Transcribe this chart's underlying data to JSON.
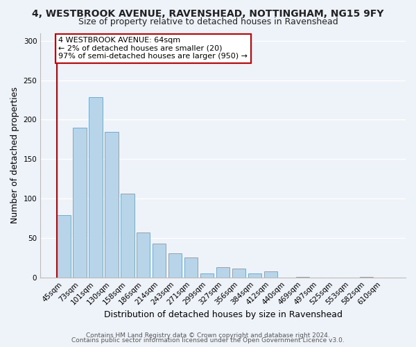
{
  "title_line1": "4, WESTBROOK AVENUE, RAVENSHEAD, NOTTINGHAM, NG15 9FY",
  "title_line2": "Size of property relative to detached houses in Ravenshead",
  "xlabel": "Distribution of detached houses by size in Ravenshead",
  "ylabel": "Number of detached properties",
  "bar_labels": [
    "45sqm",
    "73sqm",
    "101sqm",
    "130sqm",
    "158sqm",
    "186sqm",
    "214sqm",
    "243sqm",
    "271sqm",
    "299sqm",
    "327sqm",
    "356sqm",
    "384sqm",
    "412sqm",
    "440sqm",
    "469sqm",
    "497sqm",
    "525sqm",
    "553sqm",
    "582sqm",
    "610sqm"
  ],
  "bar_values": [
    79,
    190,
    229,
    185,
    106,
    57,
    43,
    31,
    25,
    5,
    13,
    11,
    5,
    8,
    0,
    1,
    0,
    0,
    0,
    1,
    0
  ],
  "bar_color": "#b8d4e8",
  "bar_edge_color": "#7aaac8",
  "annotation_title": "4 WESTBROOK AVENUE: 64sqm",
  "annotation_line2": "← 2% of detached houses are smaller (20)",
  "annotation_line3": "97% of semi-detached houses are larger (950) →",
  "marker_bar_index": 0,
  "ylim": [
    0,
    310
  ],
  "yticks": [
    0,
    50,
    100,
    150,
    200,
    250,
    300
  ],
  "footer_line1": "Contains HM Land Registry data © Crown copyright and database right 2024.",
  "footer_line2": "Contains public sector information licensed under the Open Government Licence v3.0.",
  "background_color": "#eef2f9",
  "grid_color": "#ffffff",
  "annotation_box_color": "#ffffff",
  "annotation_box_edge": "#cc0000",
  "marker_line_color": "#cc0000",
  "title_fontsize": 10,
  "subtitle_fontsize": 9,
  "axis_label_fontsize": 9,
  "tick_fontsize": 7.5,
  "annotation_fontsize": 8,
  "footer_fontsize": 6.5
}
